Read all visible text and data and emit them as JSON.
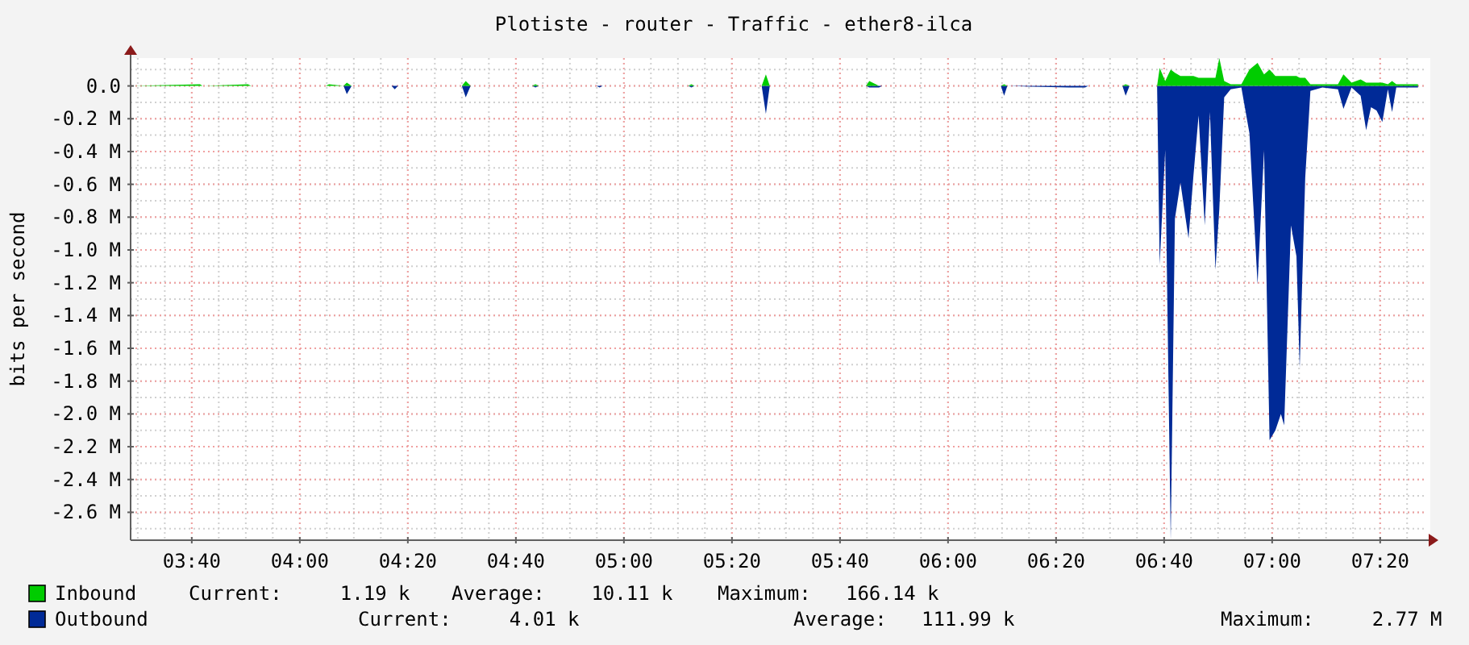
{
  "chart_data": {
    "type": "area",
    "title": "Plotiste - router - Traffic - ether8-ilca",
    "ylabel": "bits per second",
    "x": [
      3.483,
      3.692,
      3.7,
      3.84,
      3.85,
      4.08,
      4.09,
      4.135,
      4.145,
      4.16,
      4.283,
      4.293,
      4.303,
      4.5,
      4.512,
      4.527,
      4.717,
      4.727,
      4.737,
      4.915,
      4.925,
      4.935,
      5.198,
      5.208,
      5.218,
      5.425,
      5.438,
      5.45,
      5.747,
      5.757,
      5.787,
      5.797,
      6.163,
      6.173,
      6.183,
      6.373,
      6.423,
      6.433,
      6.538,
      6.548,
      6.56,
      6.645,
      6.653,
      6.67,
      6.687,
      6.7,
      6.717,
      6.742,
      6.757,
      6.773,
      6.792,
      6.808,
      6.825,
      6.837,
      6.852,
      6.872,
      6.905,
      6.93,
      6.955,
      6.975,
      6.992,
      7.01,
      7.027,
      7.037,
      7.058,
      7.075,
      7.085,
      7.102,
      7.118,
      7.155,
      7.203,
      7.22,
      7.245,
      7.273,
      7.29,
      7.305,
      7.322,
      7.34,
      7.357,
      7.37,
      7.383,
      7.45
    ],
    "series": [
      {
        "name": "Outbound",
        "color": "#002a97",
        "values": [
          0,
          0,
          0,
          0,
          0,
          0,
          0,
          0,
          -0.05,
          0,
          0,
          -0.02,
          0,
          0,
          -0.07,
          0,
          0,
          -0.01,
          0,
          0,
          -0.01,
          0,
          0,
          -0.01,
          0,
          0,
          -0.17,
          0,
          0,
          -0.01,
          -0.01,
          0,
          0,
          -0.06,
          0,
          -0.01,
          -0.01,
          0,
          0,
          -0.06,
          0,
          0,
          -1.09,
          -0.39,
          -2.77,
          -0.81,
          -0.59,
          -0.93,
          -0.55,
          -0.18,
          -0.85,
          -0.16,
          -1.12,
          -0.75,
          -0.07,
          -0.02,
          -0.01,
          -0.29,
          -1.21,
          -0.39,
          -2.16,
          -2.1,
          -2.0,
          -2.07,
          -0.85,
          -1.04,
          -1.72,
          -0.56,
          -0.03,
          -0.01,
          -0.02,
          -0.14,
          -0.01,
          -0.06,
          -0.27,
          -0.13,
          -0.15,
          -0.22,
          -0.02,
          -0.16,
          -0.01,
          -0.01
        ]
      },
      {
        "name": "Inbound",
        "color": "#00cc00",
        "values": [
          0,
          0.01,
          0,
          0.01,
          0,
          0,
          0.01,
          0,
          0.02,
          0,
          0,
          0,
          0,
          0,
          0.03,
          0,
          0,
          0.01,
          0,
          0,
          0,
          0,
          0,
          0.01,
          0,
          0,
          0.07,
          0,
          0,
          0.03,
          0,
          0,
          0,
          0.01,
          0,
          0,
          0,
          0,
          0,
          0.01,
          0,
          0,
          0.11,
          0.03,
          0.1,
          0.08,
          0.06,
          0.06,
          0.06,
          0.05,
          0.05,
          0.05,
          0.05,
          0.17,
          0.03,
          0.01,
          0.01,
          0.1,
          0.14,
          0.07,
          0.1,
          0.06,
          0.06,
          0.06,
          0.06,
          0.06,
          0.05,
          0.05,
          0.01,
          0.01,
          0.01,
          0.07,
          0.02,
          0.04,
          0.02,
          0.02,
          0.02,
          0.02,
          0.01,
          0.03,
          0.01,
          0.01
        ]
      }
    ],
    "xlim": [
      3.478,
      7.473
    ],
    "xticks": [
      {
        "value": 3.6667,
        "label": "03:40"
      },
      {
        "value": 4,
        "label": "04:00"
      },
      {
        "value": 4.3333,
        "label": "04:20"
      },
      {
        "value": 4.6667,
        "label": "04:40"
      },
      {
        "value": 5,
        "label": "05:00"
      },
      {
        "value": 5.3333,
        "label": "05:20"
      },
      {
        "value": 5.6667,
        "label": "05:40"
      },
      {
        "value": 6,
        "label": "06:00"
      },
      {
        "value": 6.3333,
        "label": "06:20"
      },
      {
        "value": 6.6667,
        "label": "06:40"
      },
      {
        "value": 7,
        "label": "07:00"
      },
      {
        "value": 7.3333,
        "label": "07:20"
      }
    ],
    "ylim": [
      -2.77,
      0.17
    ],
    "yticks": [
      {
        "value": 0,
        "label": "0.0"
      },
      {
        "value": -0.2,
        "label": "-0.2 M"
      },
      {
        "value": -0.4,
        "label": "-0.4 M"
      },
      {
        "value": -0.6,
        "label": "-0.6 M"
      },
      {
        "value": -0.8,
        "label": "-0.8 M"
      },
      {
        "value": -1.0,
        "label": "-1.0 M"
      },
      {
        "value": -1.2,
        "label": "-1.2 M"
      },
      {
        "value": -1.4,
        "label": "-1.4 M"
      },
      {
        "value": -1.6,
        "label": "-1.6 M"
      },
      {
        "value": -1.8,
        "label": "-1.8 M"
      },
      {
        "value": -2.0,
        "label": "-2.0 M"
      },
      {
        "value": -2.2,
        "label": "-2.2 M"
      },
      {
        "value": -2.4,
        "label": "-2.4 M"
      },
      {
        "value": -2.6,
        "label": "-2.6 M"
      }
    ],
    "grid": true,
    "legend": "bottom",
    "annotations": [
      "Current:     1.19 k",
      "Average:    10.11 k",
      "Maximum:   166.14 k",
      "Current:     4.01 k",
      "Average:   111.99 k",
      "Maximum:     2.77 M"
    ]
  }
}
